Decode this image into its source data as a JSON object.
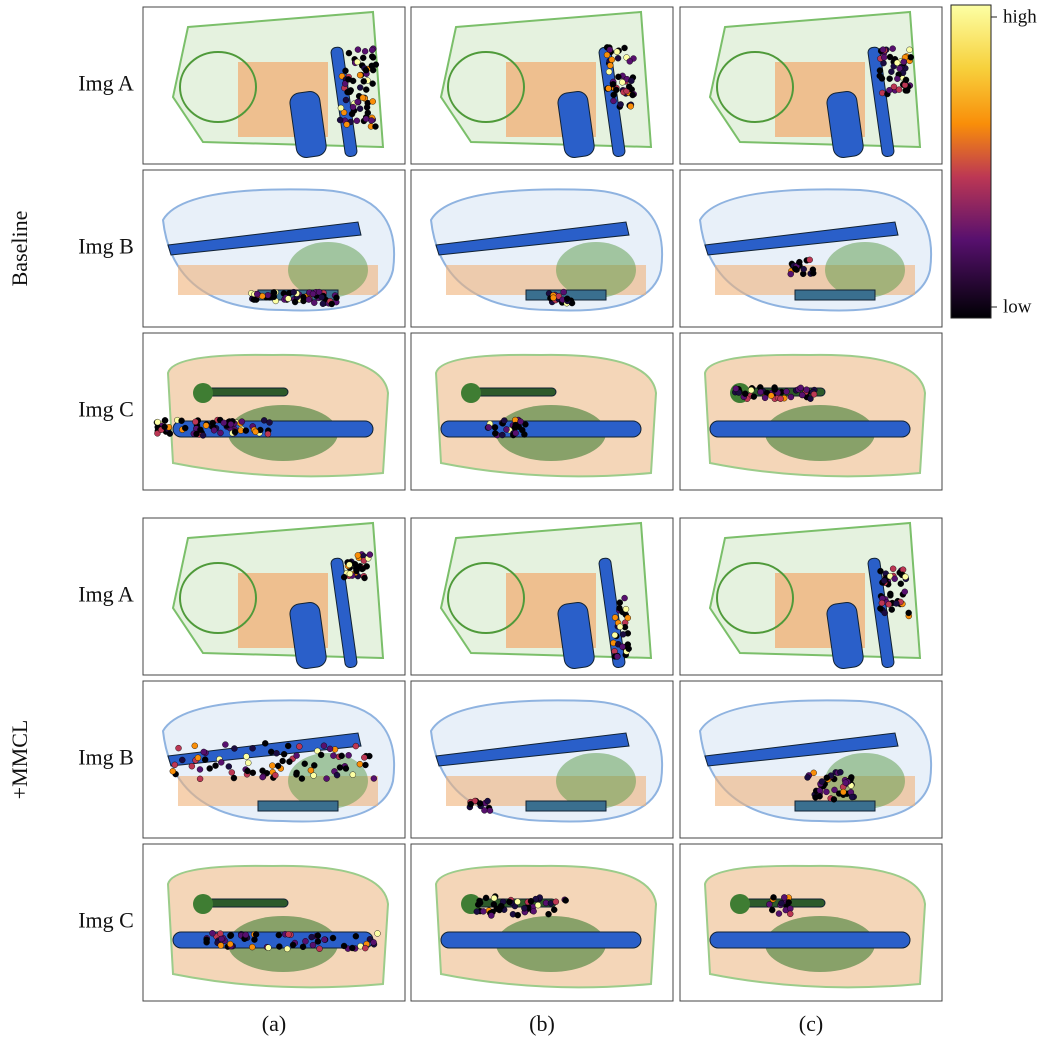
{
  "groups": [
    {
      "label": "Baseline",
      "rows": [
        "Img A",
        "Img B",
        "Img C"
      ]
    },
    {
      "label": "+MMCL",
      "rows": [
        "Img A",
        "Img B",
        "Img C"
      ]
    }
  ],
  "columns": [
    "(a)",
    "(b)",
    "(c)"
  ],
  "colorbar": {
    "high": "high",
    "low": "low"
  }
}
